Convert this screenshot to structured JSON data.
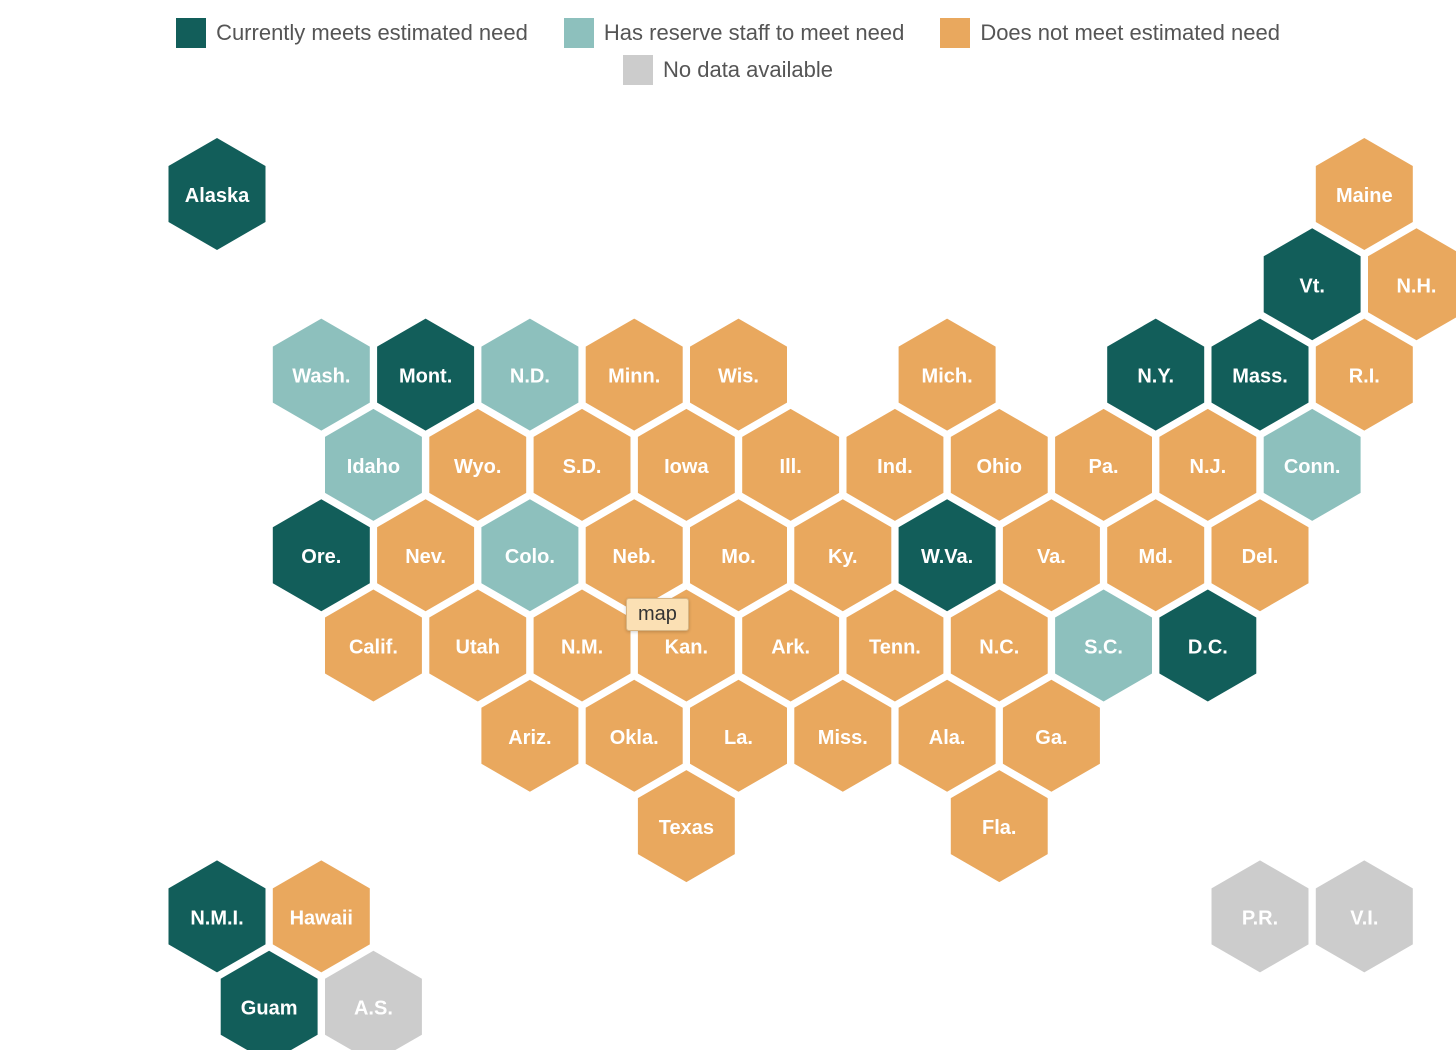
{
  "legend": {
    "items": [
      {
        "key": "meets",
        "label": "Currently meets estimated need",
        "color": "#125e5a"
      },
      {
        "key": "reserve",
        "label": "Has reserve staff to meet need",
        "color": "#8dc0bd"
      },
      {
        "key": "not_meets",
        "label": "Does not meet estimated need",
        "color": "#e9a85e"
      },
      {
        "key": "no_data",
        "label": "No data available",
        "color": "#cccccc"
      }
    ]
  },
  "tooltip": {
    "text": "map"
  },
  "states": [
    {
      "label": "Alaska",
      "status": "meets",
      "col": 0,
      "row": 0
    },
    {
      "label": "Maine",
      "status": "not_meets",
      "col": 11,
      "row": 0
    },
    {
      "label": "Vt.",
      "status": "meets",
      "col": 10,
      "row": 1
    },
    {
      "label": "N.H.",
      "status": "not_meets",
      "col": 11,
      "row": 1
    },
    {
      "label": "Wash.",
      "status": "reserve",
      "col": 1,
      "row": 2
    },
    {
      "label": "Mont.",
      "status": "meets",
      "col": 2,
      "row": 2
    },
    {
      "label": "N.D.",
      "status": "reserve",
      "col": 3,
      "row": 2
    },
    {
      "label": "Minn.",
      "status": "not_meets",
      "col": 4,
      "row": 2
    },
    {
      "label": "Wis.",
      "status": "not_meets",
      "col": 5,
      "row": 2
    },
    {
      "label": "Mich.",
      "status": "not_meets",
      "col": 7,
      "row": 2
    },
    {
      "label": "N.Y.",
      "status": "meets",
      "col": 9,
      "row": 2
    },
    {
      "label": "Mass.",
      "status": "meets",
      "col": 10,
      "row": 2
    },
    {
      "label": "R.I.",
      "status": "not_meets",
      "col": 11,
      "row": 2
    },
    {
      "label": "Idaho",
      "status": "reserve",
      "col": 1,
      "row": 3
    },
    {
      "label": "Wyo.",
      "status": "not_meets",
      "col": 2,
      "row": 3
    },
    {
      "label": "S.D.",
      "status": "not_meets",
      "col": 3,
      "row": 3
    },
    {
      "label": "Iowa",
      "status": "not_meets",
      "col": 4,
      "row": 3
    },
    {
      "label": "Ill.",
      "status": "not_meets",
      "col": 5,
      "row": 3
    },
    {
      "label": "Ind.",
      "status": "not_meets",
      "col": 6,
      "row": 3
    },
    {
      "label": "Ohio",
      "status": "not_meets",
      "col": 7,
      "row": 3
    },
    {
      "label": "Pa.",
      "status": "not_meets",
      "col": 8,
      "row": 3
    },
    {
      "label": "N.J.",
      "status": "not_meets",
      "col": 9,
      "row": 3
    },
    {
      "label": "Conn.",
      "status": "reserve",
      "col": 10,
      "row": 3
    },
    {
      "label": "Ore.",
      "status": "meets",
      "col": 1,
      "row": 4
    },
    {
      "label": "Nev.",
      "status": "not_meets",
      "col": 2,
      "row": 4
    },
    {
      "label": "Colo.",
      "status": "reserve",
      "col": 3,
      "row": 4
    },
    {
      "label": "Neb.",
      "status": "not_meets",
      "col": 4,
      "row": 4
    },
    {
      "label": "Mo.",
      "status": "not_meets",
      "col": 5,
      "row": 4
    },
    {
      "label": "Ky.",
      "status": "not_meets",
      "col": 6,
      "row": 4
    },
    {
      "label": "W.Va.",
      "status": "meets",
      "col": 7,
      "row": 4
    },
    {
      "label": "Va.",
      "status": "not_meets",
      "col": 8,
      "row": 4
    },
    {
      "label": "Md.",
      "status": "not_meets",
      "col": 9,
      "row": 4
    },
    {
      "label": "Del.",
      "status": "not_meets",
      "col": 10,
      "row": 4
    },
    {
      "label": "Calif.",
      "status": "not_meets",
      "col": 1,
      "row": 5
    },
    {
      "label": "Utah",
      "status": "not_meets",
      "col": 2,
      "row": 5
    },
    {
      "label": "N.M.",
      "status": "not_meets",
      "col": 3,
      "row": 5
    },
    {
      "label": "Kan.",
      "status": "not_meets",
      "col": 4,
      "row": 5
    },
    {
      "label": "Ark.",
      "status": "not_meets",
      "col": 5,
      "row": 5
    },
    {
      "label": "Tenn.",
      "status": "not_meets",
      "col": 6,
      "row": 5
    },
    {
      "label": "N.C.",
      "status": "not_meets",
      "col": 7,
      "row": 5
    },
    {
      "label": "S.C.",
      "status": "reserve",
      "col": 8,
      "row": 5
    },
    {
      "label": "D.C.",
      "status": "meets",
      "col": 9,
      "row": 5
    },
    {
      "label": "Ariz.",
      "status": "not_meets",
      "col": 3,
      "row": 6
    },
    {
      "label": "Okla.",
      "status": "not_meets",
      "col": 4,
      "row": 6
    },
    {
      "label": "La.",
      "status": "not_meets",
      "col": 5,
      "row": 6
    },
    {
      "label": "Miss.",
      "status": "not_meets",
      "col": 6,
      "row": 6
    },
    {
      "label": "Ala.",
      "status": "not_meets",
      "col": 7,
      "row": 6
    },
    {
      "label": "Ga.",
      "status": "not_meets",
      "col": 8,
      "row": 6
    },
    {
      "label": "Texas",
      "status": "not_meets",
      "col": 4,
      "row": 7
    },
    {
      "label": "Fla.",
      "status": "not_meets",
      "col": 7,
      "row": 7
    },
    {
      "label": "N.M.I.",
      "status": "meets",
      "col": 0,
      "row": 8
    },
    {
      "label": "Hawaii",
      "status": "not_meets",
      "col": 1,
      "row": 8
    },
    {
      "label": "P.R.",
      "status": "no_data",
      "col": 10,
      "row": 8
    },
    {
      "label": "V.I.",
      "status": "no_data",
      "col": 11,
      "row": 8
    },
    {
      "label": "Guam",
      "status": "meets",
      "col": 0,
      "row": 9
    },
    {
      "label": "A.S.",
      "status": "no_data",
      "col": 1,
      "row": 9
    }
  ]
}
